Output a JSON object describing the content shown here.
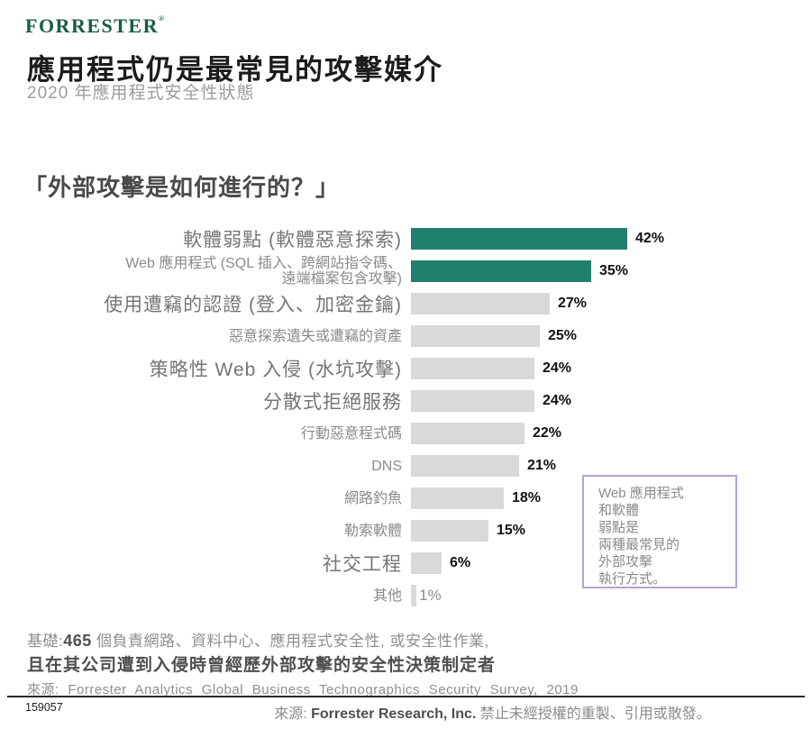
{
  "header": {
    "logo": "FORRESTER",
    "logo_mark": "®",
    "title": "應用程式仍是最常見的攻擊媒介",
    "subtitle": "2020 年應用程式安全性狀態"
  },
  "question": "「外部攻擊是如何進行的？」",
  "chart_data": {
    "type": "bar",
    "orientation": "horizontal",
    "title": "「外部攻擊是如何進行的？」",
    "unit": "%",
    "xlim": [
      0,
      45
    ],
    "grid": false,
    "legend": "none",
    "categories": [
      "軟體弱點 (軟體惡意探索)",
      "Web 應用程式 (SQL 插入、跨網站指令碼、遠端檔案包含攻擊)",
      "使用遭竊的認證 (登入、加密金鑰)",
      "惡意探索遺失或遭竊的資產",
      "策略性 Web 入侵 (水坑攻擊)",
      "分散式拒絕服務",
      "行動惡意程式碼",
      "DNS",
      "網路釣魚",
      "勒索軟體",
      "社交工程",
      "其他"
    ],
    "values": [
      42,
      35,
      27,
      25,
      24,
      24,
      22,
      21,
      18,
      15,
      6,
      1
    ],
    "colors": {
      "highlight": "#20806e",
      "default": "#d9d9d9"
    },
    "rows": [
      {
        "label": "軟體弱點 (軟體惡意探索)",
        "value": 42,
        "display": "42%",
        "size": "big",
        "highlight": true
      },
      {
        "label": "Web 應用程式 (SQL 插入、跨網站指令碼、",
        "label2": "遠端檔案包含攻擊)",
        "value": 35,
        "display": "35%",
        "size": "small",
        "highlight": true
      },
      {
        "label": "使用遭竊的認證 (登入、加密金鑰)",
        "value": 27,
        "display": "27%",
        "size": "big",
        "highlight": false
      },
      {
        "label": "惡意探索遺失或遭竊的資產",
        "value": 25,
        "display": "25%",
        "size": "small",
        "highlight": false
      },
      {
        "label": "策略性 Web 入侵 (水坑攻擊)",
        "value": 24,
        "display": "24%",
        "size": "big",
        "highlight": false
      },
      {
        "label": "分散式拒絕服務",
        "value": 24,
        "display": "24%",
        "size": "big",
        "highlight": false
      },
      {
        "label": "行動惡意程式碼",
        "value": 22,
        "display": "22%",
        "size": "small",
        "highlight": false
      },
      {
        "label": "DNS",
        "value": 21,
        "display": "21%",
        "size": "small",
        "highlight": false
      },
      {
        "label": "網路釣魚",
        "value": 18,
        "display": "18%",
        "size": "small",
        "highlight": false
      },
      {
        "label": "勒索軟體",
        "value": 15,
        "display": "15%",
        "size": "small",
        "highlight": false
      },
      {
        "label": "社交工程",
        "value": 6,
        "display": "6%",
        "size": "big",
        "highlight": false
      },
      {
        "label": "其他",
        "value": 1,
        "display": "1%",
        "size": "small",
        "highlight": false,
        "muted_pct": true
      }
    ]
  },
  "callout": {
    "border_color": "#b5a1dc",
    "lines": [
      "Web 應用程式",
      "和軟體",
      "弱點是",
      "兩種最常見的",
      "外部攻擊",
      "執行方式。"
    ]
  },
  "footnote": {
    "base_prefix": "基礎:",
    "base_count": "465",
    "base_suffix": " 個負責網路、資料中心、應用程式安全性, 或安全性作業,",
    "base_line2": "且在其公司遭到入侵時曾經歷外部攻擊的安全性決策制定者",
    "source": "來源: Forrester Analytics Global Business Technographics Security Survey, 2019"
  },
  "footer": {
    "doc_id": "159057",
    "copy_prefix": "來源: ",
    "copy_company": "Forrester Research, Inc.",
    "copy_suffix": " 禁止未經授權的重製、引用或散發。"
  }
}
